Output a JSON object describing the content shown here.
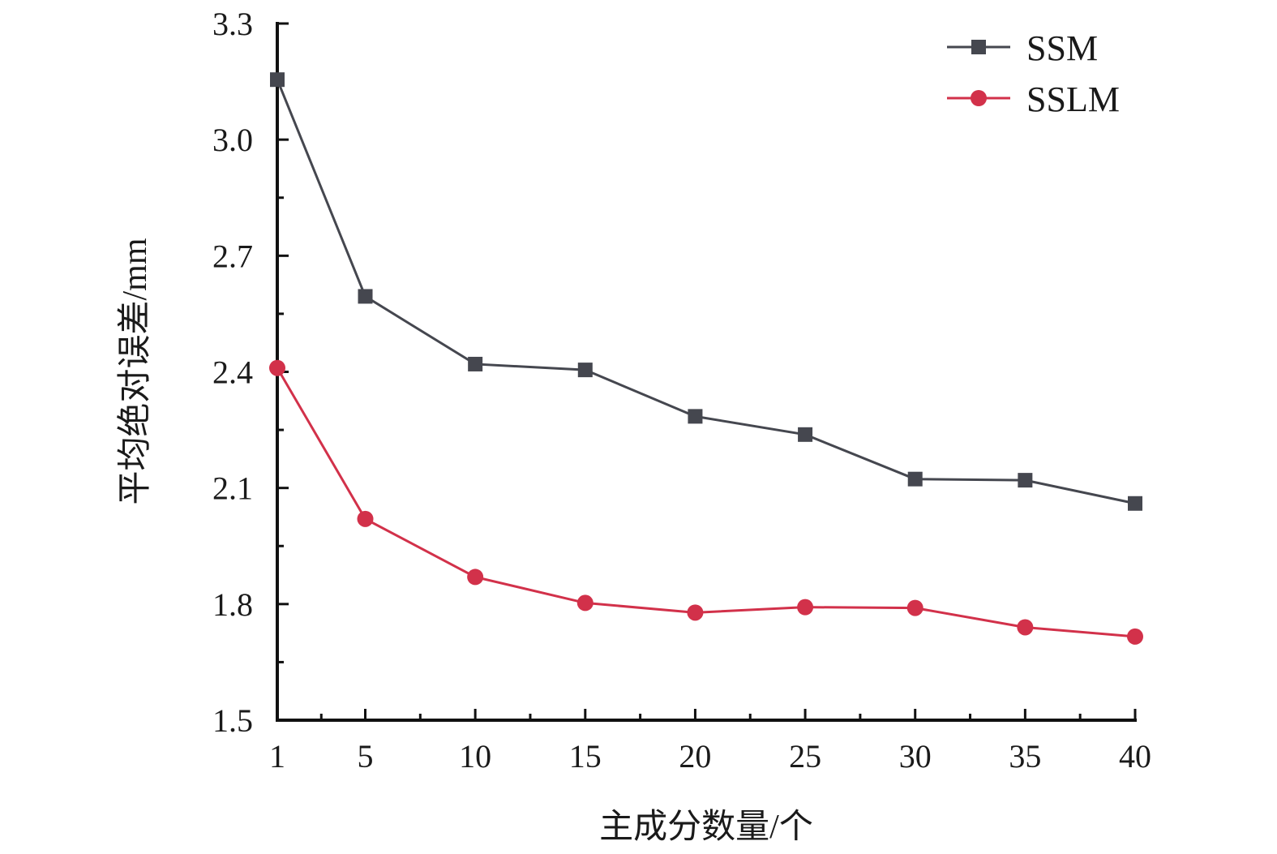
{
  "chart_data": {
    "type": "line",
    "x": [
      1,
      5,
      10,
      15,
      20,
      25,
      30,
      35,
      40
    ],
    "x_tick_labels": [
      "1",
      "5",
      "10",
      "15",
      "20",
      "25",
      "30",
      "35",
      "40"
    ],
    "xlabel": "主成分数量/个",
    "ylabel": "平均绝对误差/mm",
    "ylim": [
      1.5,
      3.3
    ],
    "y_ticks": [
      1.5,
      1.8,
      2.1,
      2.4,
      2.7,
      3.0,
      3.3
    ],
    "y_tick_labels": [
      "1.5",
      "1.8",
      "2.1",
      "2.4",
      "2.7",
      "3.0",
      "3.3"
    ],
    "grid": false,
    "legend_position": "top-right",
    "series": [
      {
        "name": "SSM",
        "marker": "square",
        "color": "#45474f",
        "values": [
          3.155,
          2.595,
          2.42,
          2.405,
          2.285,
          2.238,
          2.123,
          2.12,
          2.06
        ]
      },
      {
        "name": "SSLM",
        "marker": "circle",
        "color": "#d2314a",
        "values": [
          2.41,
          2.02,
          1.87,
          1.803,
          1.778,
          1.792,
          1.79,
          1.74,
          1.716
        ]
      }
    ]
  }
}
